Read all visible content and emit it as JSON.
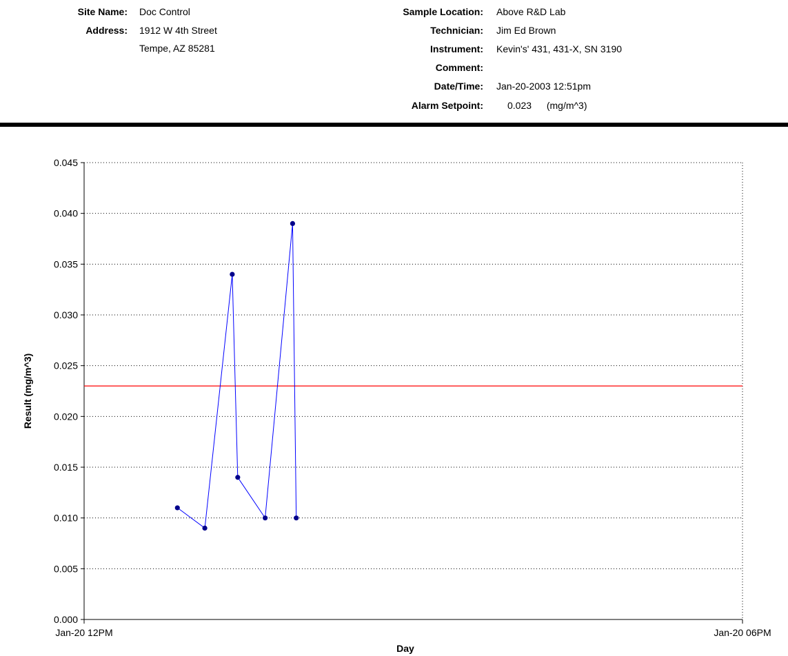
{
  "header": {
    "site_name_label": "Site Name:",
    "site_name": "Doc Control",
    "address_label": "Address:",
    "address_line1": "1912 W 4th Street",
    "address_line2": "Tempe, AZ 85281",
    "sample_location_label": "Sample Location:",
    "sample_location": "Above R&D Lab",
    "technician_label": "Technician:",
    "technician": "Jim Ed Brown",
    "instrument_label": "Instrument:",
    "instrument": "Kevin's' 431, 431-X, SN 3190",
    "comment_label": "Comment:",
    "comment": "",
    "datetime_label": "Date/Time:",
    "datetime": "Jan-20-2003 12:51pm",
    "alarm_label": "Alarm Setpoint:",
    "alarm_value": "0.023",
    "alarm_unit": "(mg/m^3)"
  },
  "chart_data": {
    "type": "line",
    "title": "",
    "xlabel": "Day",
    "ylabel": "Result (mg/m^3)",
    "xlim": [
      "2003-01-20 12:00",
      "2003-01-20 18:00"
    ],
    "x_tick_labels": [
      "Jan-20 12PM",
      "Jan-20 06PM"
    ],
    "ylim": [
      0,
      0.045
    ],
    "y_ticks": [
      "0.000",
      "0.005",
      "0.010",
      "0.015",
      "0.020",
      "0.025",
      "0.030",
      "0.035",
      "0.040",
      "0.045"
    ],
    "grid": true,
    "series": [
      {
        "color": "#0000ff",
        "marker_color": "#00008b",
        "x": [
          "2003-01-20 12:51",
          "2003-01-20 13:06",
          "2003-01-20 13:21",
          "2003-01-20 13:24",
          "2003-01-20 13:39",
          "2003-01-20 13:54",
          "2003-01-20 13:56"
        ],
        "values": [
          0.011,
          0.009,
          0.034,
          0.014,
          0.01,
          0.039,
          0.01
        ]
      }
    ],
    "reference_line": {
      "value": 0.023,
      "color": "#ff0000"
    }
  }
}
